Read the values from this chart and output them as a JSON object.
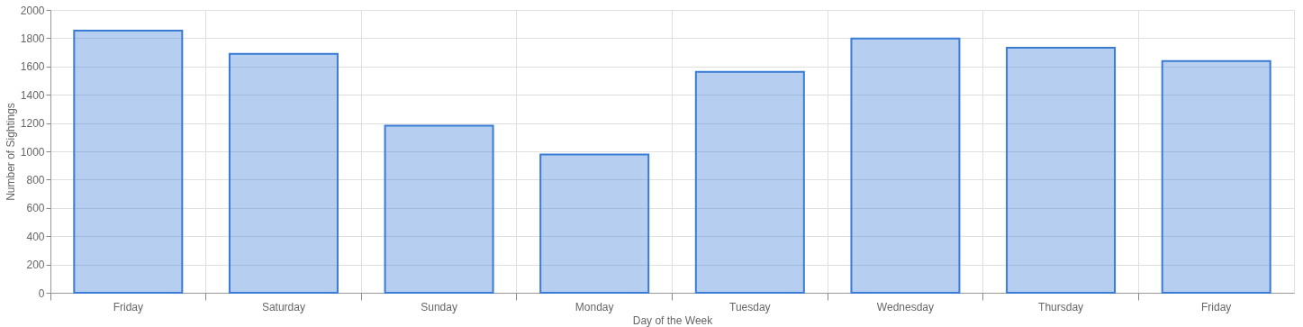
{
  "chart_data": {
    "type": "bar",
    "xlabel": "Day of the Week",
    "ylabel": "Number of Sightings",
    "categories": [
      "Friday",
      "Saturday",
      "Sunday",
      "Monday",
      "Tuesday",
      "Wednesday",
      "Thursday",
      "Friday"
    ],
    "values": [
      1854,
      1689,
      1181,
      978,
      1562,
      1797,
      1733,
      1638
    ],
    "color": "#3a7bd5",
    "ylim": [
      0,
      2000
    ],
    "yticks": [
      0,
      200,
      400,
      600,
      800,
      1000,
      1200,
      1400,
      1600,
      1800,
      2000
    ],
    "grid": true
  }
}
